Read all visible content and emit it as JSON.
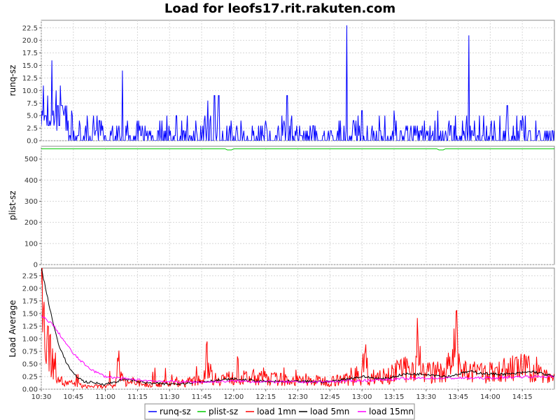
{
  "chart_data": {
    "type": "line",
    "title": "Load for leofs17.rit.rakuten.com",
    "x_ticks": [
      "10:30",
      "10:45",
      "11:00",
      "11:15",
      "11:30",
      "11:45",
      "12:00",
      "12:15",
      "12:30",
      "12:45",
      "13:00",
      "13:15",
      "13:30",
      "13:45",
      "14:00",
      "14:15"
    ],
    "x_range": [
      "10:30",
      "14:30"
    ],
    "grid": true,
    "legend_position": "bottom",
    "panels": [
      {
        "ylabel": "runq-sz",
        "ylim": [
          0,
          24
        ],
        "y_ticks": [
          "0.0",
          "2.5",
          "5.0",
          "7.5",
          "10.0",
          "12.5",
          "15.0",
          "17.5",
          "20.0",
          "22.5"
        ],
        "y_tick_values": [
          0,
          2.5,
          5,
          7.5,
          10,
          12.5,
          15,
          17.5,
          20,
          22.5
        ],
        "series": [
          {
            "name": "runq-sz",
            "color": "#0000ff",
            "style": "spiky",
            "baseline": 1.5,
            "spread": 4,
            "peaks": [
              [
                "10:31",
                11
              ],
              [
                "10:33",
                9
              ],
              [
                "10:35",
                16
              ],
              [
                "10:37",
                10
              ],
              [
                "10:39",
                11
              ],
              [
                "11:08",
                14
              ],
              [
                "11:48",
                8
              ],
              [
                "11:51",
                9
              ],
              [
                "11:53",
                9
              ],
              [
                "12:25",
                9
              ],
              [
                "12:53",
                23
              ],
              [
                "13:00",
                6
              ],
              [
                "13:15",
                6
              ],
              [
                "13:50",
                21
              ],
              [
                "13:55",
                5
              ],
              [
                "14:08",
                7
              ],
              [
                "14:15",
                5
              ]
            ]
          }
        ]
      },
      {
        "ylabel": "plist-sz",
        "ylim": [
          0,
          560
        ],
        "y_ticks": [
          "0",
          "100",
          "200",
          "300",
          "400",
          "500"
        ],
        "y_tick_values": [
          0,
          100,
          200,
          300,
          400,
          500
        ],
        "series": [
          {
            "name": "plist-sz",
            "color": "#00cc00",
            "style": "flat",
            "baseline": 548,
            "dips": [
              [
                "11:58",
                543
              ],
              [
                "13:37",
                543
              ]
            ]
          }
        ]
      },
      {
        "ylabel": "Load Average",
        "ylim": [
          0,
          2.4
        ],
        "y_ticks": [
          "0.00",
          "0.25",
          "0.50",
          "0.75",
          "1.00",
          "1.25",
          "1.50",
          "1.75",
          "2.00",
          "2.25"
        ],
        "y_tick_values": [
          0,
          0.25,
          0.5,
          0.75,
          1,
          1.25,
          1.5,
          1.75,
          2,
          2.25
        ],
        "series": [
          {
            "name": "load 1mn",
            "color": "#ff0000",
            "style": "noisy",
            "points": [
              [
                "10:30",
                2.0
              ],
              [
                "10:31",
                1.1
              ],
              [
                "10:32",
                0.6
              ],
              [
                "10:33",
                1.0
              ],
              [
                "10:35",
                0.5
              ],
              [
                "10:38",
                0.3
              ],
              [
                "10:40",
                0.1
              ],
              [
                "10:45",
                0.1
              ],
              [
                "10:50",
                0.05
              ],
              [
                "11:00",
                0.05
              ],
              [
                "11:05",
                0.05
              ],
              [
                "11:06",
                0.7
              ],
              [
                "11:08",
                0.15
              ],
              [
                "11:15",
                0.1
              ],
              [
                "11:30",
                0.1
              ],
              [
                "11:45",
                0.15
              ],
              [
                "11:48",
                0.6
              ],
              [
                "11:50",
                0.2
              ],
              [
                "12:00",
                0.2
              ],
              [
                "12:15",
                0.2
              ],
              [
                "12:30",
                0.15
              ],
              [
                "12:45",
                0.15
              ],
              [
                "13:00",
                0.2
              ],
              [
                "13:01",
                0.8
              ],
              [
                "13:03",
                0.2
              ],
              [
                "13:15",
                0.3
              ],
              [
                "13:25",
                0.4
              ],
              [
                "13:26",
                0.95
              ],
              [
                "13:28",
                0.3
              ],
              [
                "13:38",
                0.3
              ],
              [
                "13:43",
                0.5
              ],
              [
                "13:44",
                1.0
              ],
              [
                "13:46",
                0.3
              ],
              [
                "14:00",
                0.3
              ],
              [
                "14:15",
                0.4
              ],
              [
                "14:30",
                0.2
              ]
            ]
          },
          {
            "name": "load 5mn",
            "color": "#000000",
            "style": "smooth",
            "points": [
              [
                "10:30",
                2.4
              ],
              [
                "10:32",
                2.0
              ],
              [
                "10:35",
                1.4
              ],
              [
                "10:38",
                0.9
              ],
              [
                "10:42",
                0.5
              ],
              [
                "10:45",
                0.3
              ],
              [
                "10:50",
                0.15
              ],
              [
                "11:00",
                0.1
              ],
              [
                "11:10",
                0.2
              ],
              [
                "11:20",
                0.12
              ],
              [
                "11:30",
                0.1
              ],
              [
                "11:45",
                0.15
              ],
              [
                "12:00",
                0.2
              ],
              [
                "12:15",
                0.15
              ],
              [
                "12:30",
                0.15
              ],
              [
                "12:45",
                0.15
              ],
              [
                "13:00",
                0.25
              ],
              [
                "13:10",
                0.2
              ],
              [
                "13:20",
                0.3
              ],
              [
                "13:30",
                0.3
              ],
              [
                "13:40",
                0.25
              ],
              [
                "13:50",
                0.35
              ],
              [
                "14:00",
                0.3
              ],
              [
                "14:10",
                0.3
              ],
              [
                "14:20",
                0.35
              ],
              [
                "14:30",
                0.25
              ]
            ]
          },
          {
            "name": "load 15mn",
            "color": "#ff00ff",
            "style": "smooth",
            "points": [
              [
                "10:30",
                1.45
              ],
              [
                "10:35",
                1.3
              ],
              [
                "10:40",
                1.0
              ],
              [
                "10:45",
                0.7
              ],
              [
                "10:50",
                0.5
              ],
              [
                "10:55",
                0.35
              ],
              [
                "11:00",
                0.25
              ],
              [
                "11:10",
                0.2
              ],
              [
                "11:20",
                0.17
              ],
              [
                "11:30",
                0.15
              ],
              [
                "11:45",
                0.14
              ],
              [
                "12:00",
                0.16
              ],
              [
                "12:15",
                0.15
              ],
              [
                "12:30",
                0.14
              ],
              [
                "12:45",
                0.15
              ],
              [
                "13:00",
                0.17
              ],
              [
                "13:15",
                0.2
              ],
              [
                "13:30",
                0.22
              ],
              [
                "13:45",
                0.22
              ],
              [
                "14:00",
                0.22
              ],
              [
                "14:15",
                0.25
              ],
              [
                "14:30",
                0.25
              ]
            ]
          }
        ]
      }
    ],
    "legend": [
      {
        "name": "runq-sz",
        "color": "#0000ff"
      },
      {
        "name": "plist-sz",
        "color": "#00cc00"
      },
      {
        "name": "load 1mn",
        "color": "#ff0000"
      },
      {
        "name": "load 5mn",
        "color": "#000000"
      },
      {
        "name": "load 15mn",
        "color": "#ff00ff"
      }
    ]
  }
}
